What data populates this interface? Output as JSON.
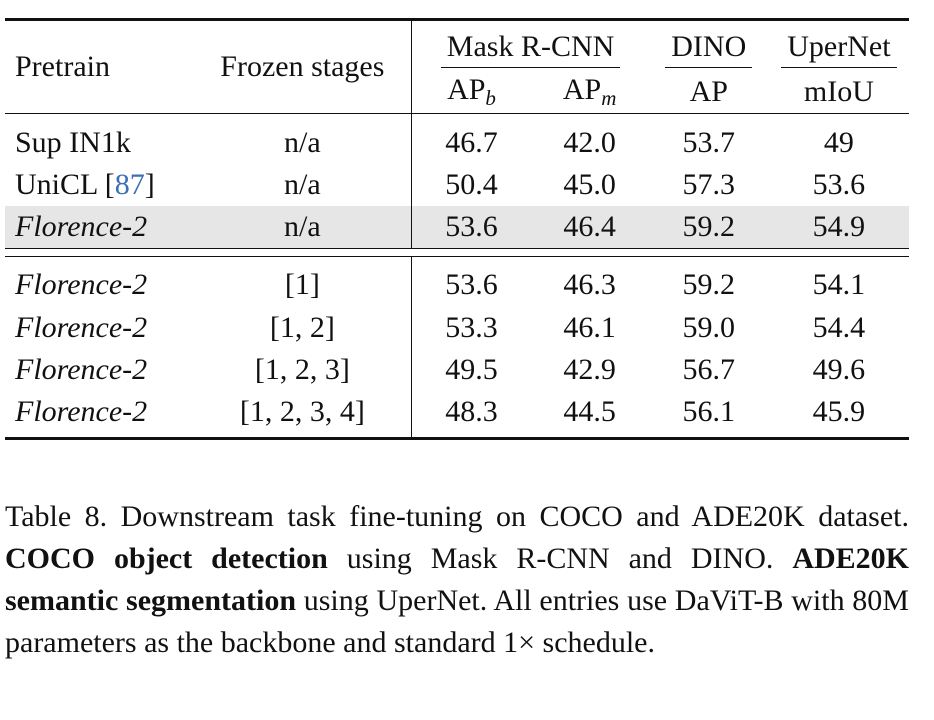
{
  "table": {
    "headers": {
      "pretrain": "Pretrain",
      "frozen": "Frozen stages",
      "mask_rcnn": "Mask R-CNN",
      "dino": "DINO",
      "upernet": "UperNet",
      "ap": "AP",
      "ap_b_sub": "b",
      "ap_m_sub": "m",
      "miou": "mIoU"
    },
    "group1": [
      {
        "pretrain": "Sup IN1k",
        "cite": "",
        "frozen": "n/a",
        "apb": "46.7",
        "apm": "42.0",
        "dino": "53.7",
        "miou": "49"
      },
      {
        "pretrain": "UniCL [",
        "cite": "87",
        "cite_close": "]",
        "frozen": "n/a",
        "apb": "50.4",
        "apm": "45.0",
        "dino": "57.3",
        "miou": "53.6"
      },
      {
        "pretrain": "Florence-2",
        "cite": "",
        "frozen": "n/a",
        "apb": "53.6",
        "apm": "46.4",
        "dino": "59.2",
        "miou": "54.9"
      }
    ],
    "group2": [
      {
        "pretrain": "Florence-2",
        "frozen": "[1]",
        "apb": "53.6",
        "apm": "46.3",
        "dino": "59.2",
        "miou": "54.1"
      },
      {
        "pretrain": "Florence-2",
        "frozen": "[1, 2]",
        "apb": "53.3",
        "apm": "46.1",
        "dino": "59.0",
        "miou": "54.4"
      },
      {
        "pretrain": "Florence-2",
        "frozen": "[1, 2, 3]",
        "apb": "49.5",
        "apm": "42.9",
        "dino": "56.7",
        "miou": "49.6"
      },
      {
        "pretrain": "Florence-2",
        "frozen": "[1, 2, 3, 4]",
        "apb": "48.3",
        "apm": "44.5",
        "dino": "56.1",
        "miou": "45.9"
      }
    ]
  },
  "caption": {
    "part1": "Table 8.  Downstream task fine-tuning on COCO and ADE20K dataset. ",
    "bold1": "COCO object detection",
    "part2": " using Mask R-CNN and DINO. ",
    "bold2": "ADE20K semantic segmentation",
    "part3": " using UperNet. All entries use DaViT-B with 80M parameters as the backbone and standard 1× schedule."
  },
  "colors": {
    "citation_link": "#3d6fb5",
    "highlight_row": "#e6e6e6"
  }
}
